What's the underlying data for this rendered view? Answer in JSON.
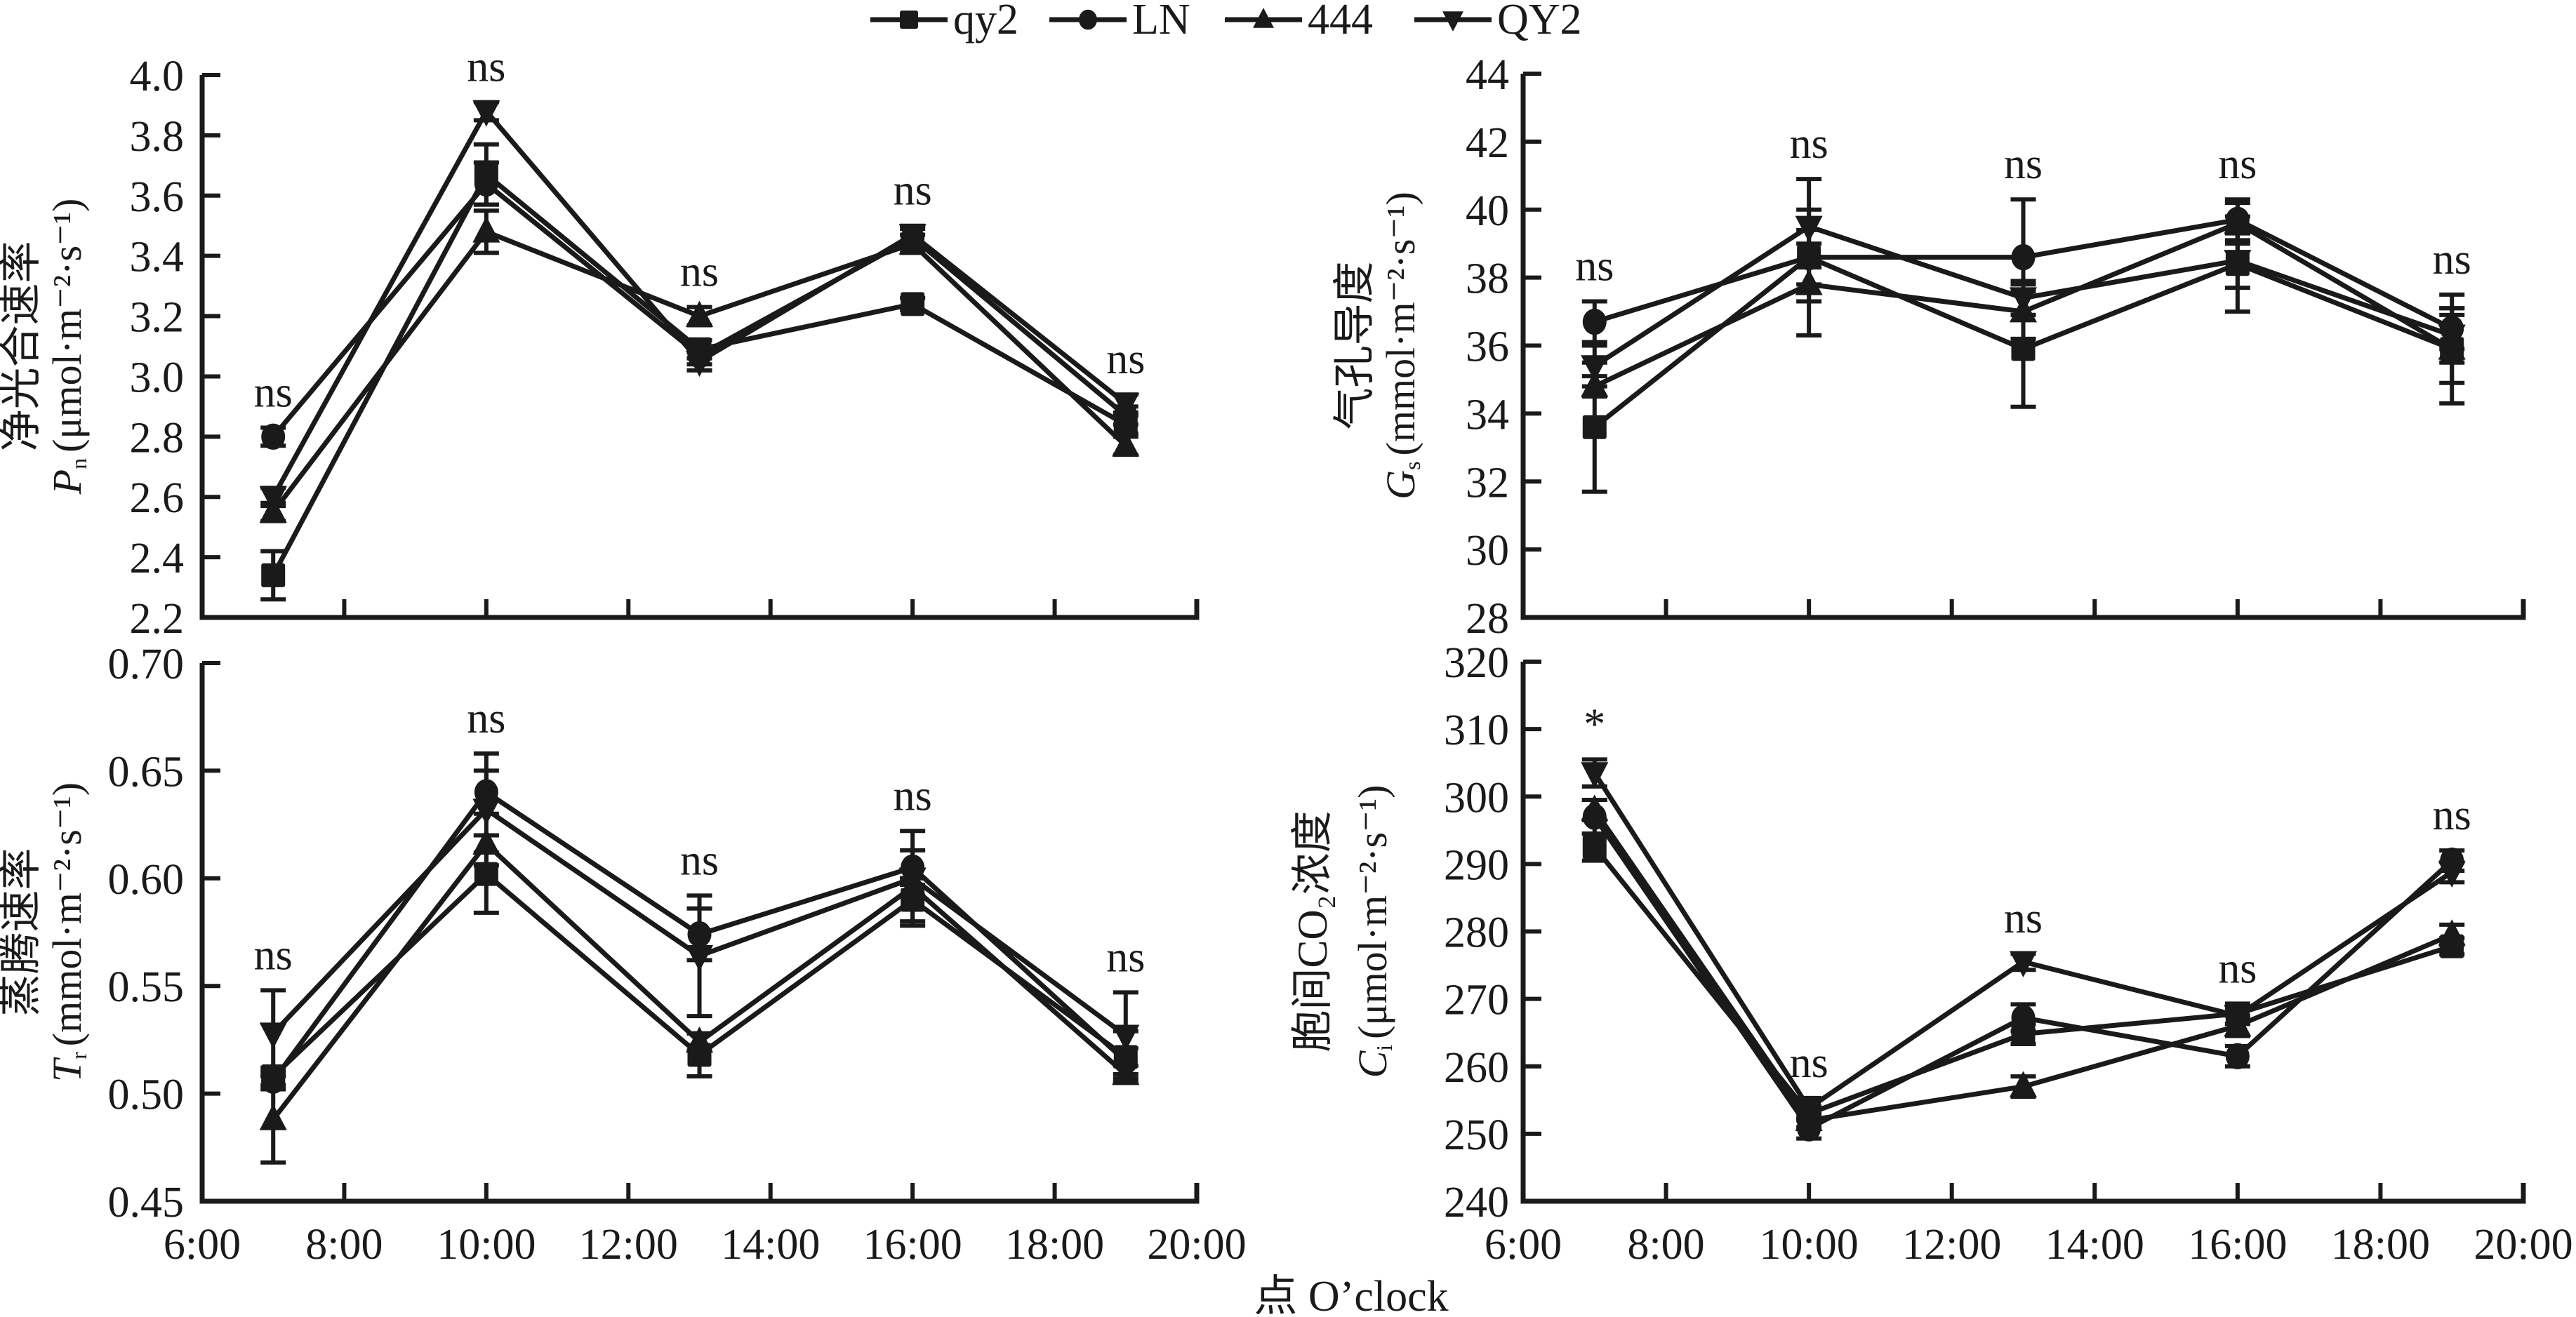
{
  "legend": {
    "items": [
      {
        "name": "qy2",
        "marker": "square"
      },
      {
        "name": "LN",
        "marker": "circle"
      },
      {
        "name": "444",
        "marker": "triangle-up"
      },
      {
        "name": "QY2",
        "marker": "triangle-down"
      }
    ],
    "placement": "top-center"
  },
  "x_axis_label": "点 O’clock",
  "chart_data": [
    {
      "id": "pn",
      "type": "line",
      "title": "",
      "ylabel_cn": "净光合速率",
      "ylabel_symbol": "P",
      "ylabel_sub": "n",
      "ylabel_unit": "(μmol·m⁻²·s⁻¹)",
      "xlabel": "",
      "x_ticks": [
        "6:00",
        "8:00",
        "10:00",
        "12:00",
        "14:00",
        "16:00",
        "18:00",
        "20:00"
      ],
      "xlim": [
        6,
        20
      ],
      "x": [
        7,
        10,
        13,
        16,
        19
      ],
      "ylim": [
        2.2,
        4.0
      ],
      "y_ticks": [
        "2.2",
        "2.4",
        "2.6",
        "2.8",
        "3.0",
        "3.2",
        "3.4",
        "3.6",
        "3.8",
        "4.0"
      ],
      "series": [
        {
          "name": "qy2",
          "marker": "square",
          "values": [
            2.34,
            3.67,
            3.09,
            3.24,
            2.84
          ],
          "errors": [
            0.08,
            0.1,
            0.03,
            0.02,
            0.03
          ]
        },
        {
          "name": "LN",
          "marker": "circle",
          "values": [
            2.8,
            3.64,
            3.07,
            3.46,
            2.87
          ],
          "errors": [
            0.03,
            0.07,
            0.03,
            0.03,
            0.03
          ]
        },
        {
          "name": "444",
          "marker": "triangle-up",
          "values": [
            2.55,
            3.48,
            3.2,
            3.44,
            2.77
          ],
          "errors": [
            0.03,
            0.07,
            0.03,
            0.03,
            0.03
          ]
        },
        {
          "name": "QY2",
          "marker": "triangle-down",
          "values": [
            2.6,
            3.88,
            3.05,
            3.47,
            2.91
          ],
          "errors": [
            0.03,
            0.03,
            0.03,
            0.03,
            0.03
          ]
        }
      ],
      "annotations": [
        "ns",
        "ns",
        "ns",
        "ns",
        "ns"
      ]
    },
    {
      "id": "gs",
      "type": "line",
      "title": "",
      "ylabel_cn": "气孔导度",
      "ylabel_symbol": "G",
      "ylabel_sub": "s",
      "ylabel_unit": "(mmol·m⁻²·s⁻¹)",
      "xlabel": "",
      "x_ticks": [
        "6:00",
        "8:00",
        "10:00",
        "12:00",
        "14:00",
        "16:00",
        "18:00",
        "20:00"
      ],
      "xlim": [
        6,
        20
      ],
      "x": [
        7,
        10,
        13,
        16,
        19
      ],
      "ylim": [
        28,
        44
      ],
      "y_ticks": [
        "28",
        "30",
        "32",
        "34",
        "36",
        "38",
        "40",
        "42",
        "44"
      ],
      "series": [
        {
          "name": "qy2",
          "marker": "square",
          "values": [
            33.6,
            38.6,
            35.9,
            38.4,
            35.9
          ],
          "errors": [
            1.9,
            2.3,
            1.7,
            1.4,
            1.6
          ]
        },
        {
          "name": "LN",
          "marker": "circle",
          "values": [
            36.7,
            38.6,
            38.6,
            39.7,
            36.5
          ],
          "errors": [
            0.6,
            0.8,
            1.7,
            0.6,
            0.6
          ]
        },
        {
          "name": "444",
          "marker": "triangle-up",
          "values": [
            34.8,
            37.8,
            37.0,
            39.6,
            35.9
          ],
          "errors": [
            0.3,
            0.5,
            0.8,
            0.6,
            1.0
          ]
        },
        {
          "name": "QY2",
          "marker": "triangle-down",
          "values": [
            35.4,
            39.5,
            37.4,
            38.5,
            36.3
          ],
          "errors": [
            0.6,
            0.5,
            0.5,
            0.8,
            0.8
          ]
        }
      ],
      "annotations": [
        "ns",
        "ns",
        "ns",
        "ns",
        "ns"
      ]
    },
    {
      "id": "tr",
      "type": "line",
      "title": "",
      "ylabel_cn": "蒸腾速率",
      "ylabel_symbol": "T",
      "ylabel_sub": "r",
      "ylabel_unit": "(mmol·m⁻²·s⁻¹)",
      "xlabel": "",
      "x_ticks": [
        "6:00",
        "8:00",
        "10:00",
        "12:00",
        "14:00",
        "16:00",
        "18:00",
        "20:00"
      ],
      "xlim": [
        6,
        20
      ],
      "x": [
        7,
        10,
        13,
        16,
        19
      ],
      "ylim": [
        0.45,
        0.7
      ],
      "y_ticks": [
        "0.45",
        "0.50",
        "0.55",
        "0.60",
        "0.65",
        "0.70"
      ],
      "series": [
        {
          "name": "qy2",
          "marker": "square",
          "values": [
            0.508,
            0.602,
            0.518,
            0.59,
            0.517
          ],
          "errors": [
            0.004,
            0.018,
            0.01,
            0.01,
            0.012
          ]
        },
        {
          "name": "LN",
          "marker": "circle",
          "values": [
            0.506,
            0.64,
            0.574,
            0.605,
            0.515
          ],
          "errors": [
            0.004,
            0.01,
            0.012,
            0.008,
            0.006
          ]
        },
        {
          "name": "444",
          "marker": "triangle-up",
          "values": [
            0.488,
            0.616,
            0.524,
            0.596,
            0.509
          ],
          "errors": [
            0.02,
            0.004,
            0.004,
            0.004,
            0.004
          ]
        },
        {
          "name": "QY2",
          "marker": "triangle-down",
          "values": [
            0.528,
            0.632,
            0.564,
            0.6,
            0.527
          ],
          "errors": [
            0.02,
            0.026,
            0.028,
            0.022,
            0.02
          ]
        }
      ],
      "annotations": [
        "ns",
        "ns",
        "ns",
        "ns",
        "ns"
      ]
    },
    {
      "id": "ci",
      "type": "line",
      "title": "",
      "ylabel_cn": "胞间CO₂浓度",
      "ylabel_symbol": "C",
      "ylabel_sub": "i",
      "ylabel_unit": "(μmol·m⁻²·s⁻¹)",
      "xlabel": "",
      "x_ticks": [
        "6:00",
        "8:00",
        "10:00",
        "12:00",
        "14:00",
        "16:00",
        "18:00",
        "20:00"
      ],
      "xlim": [
        6,
        20
      ],
      "x": [
        7,
        10,
        13,
        16,
        19
      ],
      "ylim": [
        240,
        320
      ],
      "y_ticks": [
        "240",
        "250",
        "260",
        "270",
        "280",
        "290",
        "300",
        "310",
        "320"
      ],
      "series": [
        {
          "name": "qy2",
          "marker": "square",
          "values": [
            292.5,
            253.0,
            264.8,
            267.8,
            277.8
          ],
          "errors": [
            2.0,
            1.0,
            1.5,
            1.5,
            1.2
          ]
        },
        {
          "name": "LN",
          "marker": "circle",
          "values": [
            297.0,
            250.8,
            267.2,
            261.5,
            290.5
          ],
          "errors": [
            2.5,
            1.5,
            2.0,
            1.5,
            1.5
          ]
        },
        {
          "name": "444",
          "marker": "triangle-up",
          "values": [
            298.0,
            252.0,
            257.0,
            266.0,
            279.5
          ],
          "errors": [
            1.5,
            1.0,
            1.5,
            1.5,
            1.5
          ]
        },
        {
          "name": "QY2",
          "marker": "triangle-down",
          "values": [
            303.5,
            253.8,
            275.5,
            267.5,
            288.8
          ],
          "errors": [
            2.0,
            1.5,
            1.2,
            1.2,
            1.5
          ]
        }
      ],
      "annotations": [
        "*",
        "ns",
        "ns",
        "ns",
        "ns"
      ]
    }
  ]
}
